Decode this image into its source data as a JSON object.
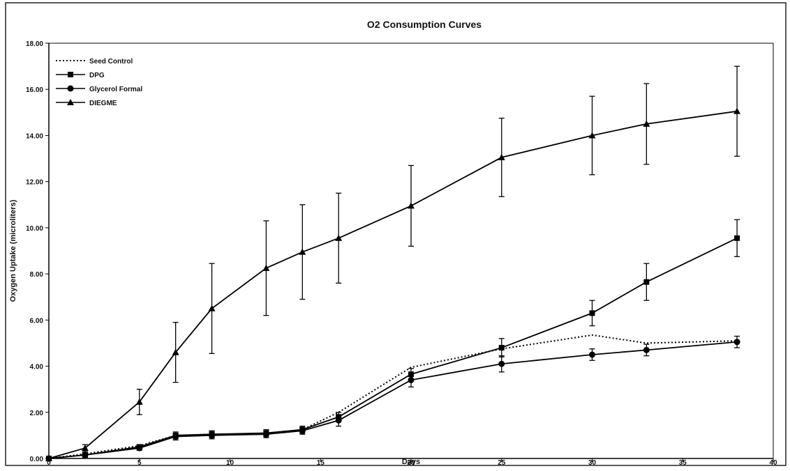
{
  "chart_data": {
    "type": "line",
    "title": "O2 Consumption Curves",
    "xlabel": "Days",
    "ylabel": "Oxygen Uptake (microliters)",
    "xlim": [
      0,
      40
    ],
    "ylim": [
      0,
      18
    ],
    "xticks": [
      "0",
      "5",
      "10",
      "15",
      "20",
      "25",
      "30",
      "35",
      "40"
    ],
    "yticks": [
      "0.00",
      "2.00",
      "4.00",
      "6.00",
      "8.00",
      "10.00",
      "12.00",
      "14.00",
      "16.00",
      "18.00"
    ],
    "grid": false,
    "legend_position": "top-left",
    "series": [
      {
        "name": "Seed Control",
        "style": "dotted",
        "marker": "none",
        "x": [
          0,
          2,
          5,
          7,
          9,
          12,
          14,
          16,
          20,
          25,
          30,
          33,
          38
        ],
        "y": [
          0.0,
          0.2,
          0.55,
          1.0,
          1.05,
          1.05,
          1.25,
          2.0,
          3.95,
          4.75,
          5.35,
          5.0,
          5.1
        ],
        "err": null
      },
      {
        "name": "DPG",
        "style": "solid",
        "marker": "square",
        "x": [
          0,
          2,
          5,
          7,
          9,
          12,
          14,
          16,
          20,
          25,
          30,
          33,
          38
        ],
        "y": [
          0.0,
          0.15,
          0.5,
          1.0,
          1.05,
          1.1,
          1.25,
          1.8,
          3.65,
          4.8,
          6.3,
          7.65,
          9.55
        ],
        "err": [
          0.0,
          0.1,
          0.1,
          0.15,
          0.15,
          0.15,
          0.15,
          0.2,
          0.25,
          0.4,
          0.55,
          0.8,
          0.8
        ]
      },
      {
        "name": "Glycerol Formal",
        "style": "solid",
        "marker": "circle",
        "x": [
          0,
          2,
          5,
          7,
          9,
          12,
          14,
          16,
          20,
          25,
          30,
          33,
          38
        ],
        "y": [
          0.0,
          0.15,
          0.45,
          0.95,
          1.0,
          1.05,
          1.2,
          1.65,
          3.4,
          4.1,
          4.5,
          4.7,
          5.05
        ],
        "err": [
          0.0,
          0.1,
          0.1,
          0.15,
          0.15,
          0.15,
          0.15,
          0.25,
          0.3,
          0.35,
          0.25,
          0.25,
          0.25
        ]
      },
      {
        "name": "DIEGME",
        "style": "solid",
        "marker": "triangle",
        "x": [
          0,
          2,
          5,
          7,
          9,
          12,
          14,
          16,
          20,
          25,
          30,
          33,
          38
        ],
        "y": [
          0.0,
          0.45,
          2.45,
          4.6,
          6.5,
          8.25,
          8.95,
          9.55,
          10.95,
          13.05,
          14.0,
          14.5,
          15.05
        ],
        "err": [
          0.0,
          0.15,
          0.55,
          1.3,
          1.95,
          2.05,
          2.05,
          1.95,
          1.75,
          1.7,
          1.7,
          1.75,
          1.95
        ]
      }
    ]
  }
}
